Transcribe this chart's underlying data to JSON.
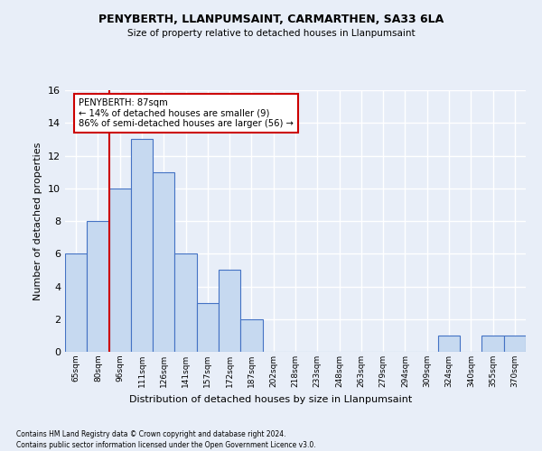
{
  "title1": "PENYBERTH, LLANPUMSAINT, CARMARTHEN, SA33 6LA",
  "title2": "Size of property relative to detached houses in Llanpumsaint",
  "xlabel": "Distribution of detached houses by size in Llanpumsaint",
  "ylabel": "Number of detached properties",
  "categories": [
    "65sqm",
    "80sqm",
    "96sqm",
    "111sqm",
    "126sqm",
    "141sqm",
    "157sqm",
    "172sqm",
    "187sqm",
    "202sqm",
    "218sqm",
    "233sqm",
    "248sqm",
    "263sqm",
    "279sqm",
    "294sqm",
    "309sqm",
    "324sqm",
    "340sqm",
    "355sqm",
    "370sqm"
  ],
  "values": [
    6,
    8,
    10,
    13,
    11,
    6,
    3,
    5,
    2,
    0,
    0,
    0,
    0,
    0,
    0,
    0,
    0,
    1,
    0,
    1,
    1
  ],
  "bar_color": "#c6d9f0",
  "bar_edge_color": "#4472c4",
  "property_line_x": 1.5,
  "annotation_title": "PENYBERTH: 87sqm",
  "annotation_line1": "← 14% of detached houses are smaller (9)",
  "annotation_line2": "86% of semi-detached houses are larger (56) →",
  "annotation_box_color": "#ffffff",
  "annotation_box_edge": "#cc0000",
  "vertical_line_color": "#cc0000",
  "ylim": [
    0,
    16
  ],
  "yticks": [
    0,
    2,
    4,
    6,
    8,
    10,
    12,
    14,
    16
  ],
  "footnote1": "Contains HM Land Registry data © Crown copyright and database right 2024.",
  "footnote2": "Contains public sector information licensed under the Open Government Licence v3.0.",
  "background_color": "#e8eef8",
  "plot_bg_color": "#e8eef8",
  "grid_color": "#ffffff"
}
